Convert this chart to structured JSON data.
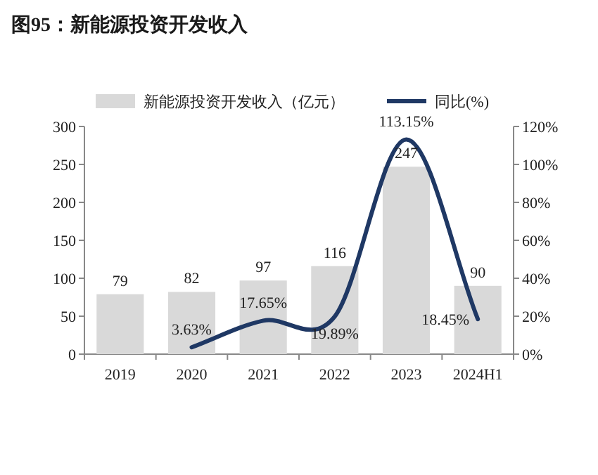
{
  "chart_data": {
    "type": "bar",
    "title": "图95：新能源投资开发收入",
    "categories": [
      "2019",
      "2020",
      "2021",
      "2022",
      "2023",
      "2024H1"
    ],
    "series": [
      {
        "name": "新能源投资开发收入（亿元）",
        "color": "#d9d9d9",
        "values": [
          79,
          82,
          97,
          116,
          247,
          90
        ],
        "value_labels": [
          "79",
          "82",
          "97",
          "116",
          "247",
          "90"
        ]
      },
      {
        "name": "同比(%)",
        "type": "line",
        "axis": "y2",
        "color": "#1f3864",
        "values": [
          null,
          3.63,
          17.65,
          19.89,
          113.15,
          18.45
        ],
        "value_labels": [
          null,
          "3.63%",
          "17.65%",
          "19.89%",
          "113.15%",
          "18.45%"
        ]
      }
    ],
    "ylim": [
      0,
      300
    ],
    "yticks": [
      0,
      50,
      100,
      150,
      200,
      250,
      300
    ],
    "y2lim": [
      0,
      120
    ],
    "y2ticks": [
      {
        "value": 0,
        "label": "0%"
      },
      {
        "value": 20,
        "label": "20%"
      },
      {
        "value": 40,
        "label": "40%"
      },
      {
        "value": 60,
        "label": "60%"
      },
      {
        "value": 80,
        "label": "80%"
      },
      {
        "value": 100,
        "label": "100%"
      },
      {
        "value": 120,
        "label": "120%"
      }
    ],
    "legend": "top",
    "grid": false
  }
}
